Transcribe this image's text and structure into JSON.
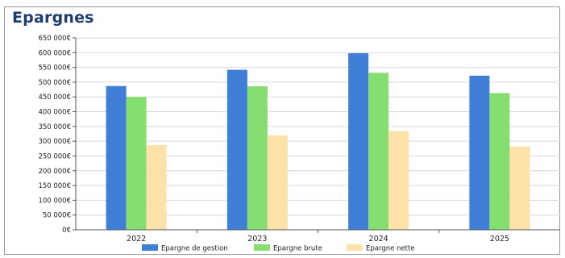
{
  "chart_data": {
    "type": "bar",
    "title": "Epargnes",
    "categories": [
      "2022",
      "2023",
      "2024",
      "2025"
    ],
    "series": [
      {
        "name": "Epargne de gestion",
        "color": "#3f7fd8",
        "values": [
          487000,
          542000,
          598000,
          522000
        ]
      },
      {
        "name": "Epargne brute",
        "color": "#86de70",
        "values": [
          450000,
          486000,
          532000,
          463000
        ]
      },
      {
        "name": "Epargne nette",
        "color": "#fce2a8",
        "values": [
          287000,
          320000,
          334000,
          282000
        ]
      }
    ],
    "y_ticks": [
      "0€",
      "50 000€",
      "100 000€",
      "150 000€",
      "200 000€",
      "250 000€",
      "300 000€",
      "350 000€",
      "400 000€",
      "450 000€",
      "500 000€",
      "550 000€",
      "600 000€",
      "650 000€"
    ],
    "ylim": [
      0,
      650000
    ],
    "xlabel": "",
    "ylabel": "",
    "grid": true,
    "legend_position": "bottom"
  }
}
